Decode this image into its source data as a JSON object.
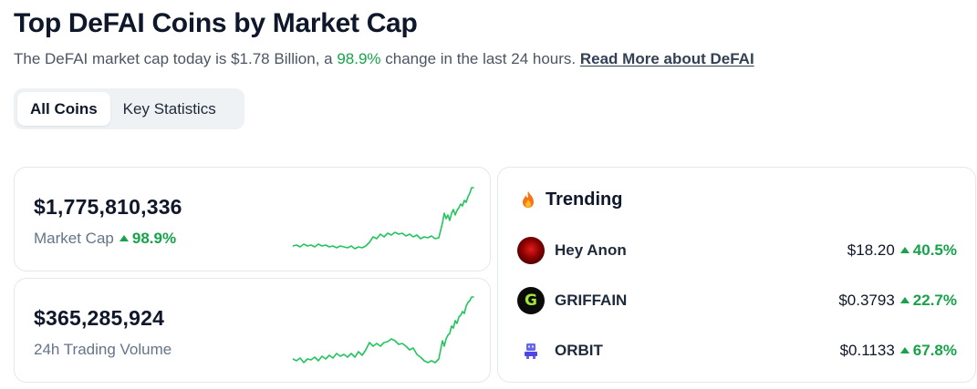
{
  "header": {
    "title": "Top DeFAI Coins by Market Cap",
    "subtitle_prefix": "The DeFAI market cap today is $1.78 Billion, a ",
    "subtitle_pct": "98.9%",
    "subtitle_suffix": " change in the last 24 hours. ",
    "read_more": "Read More about DeFAI"
  },
  "tabs": [
    {
      "label": "All Coins",
      "active": true
    },
    {
      "label": "Key Statistics",
      "active": false
    }
  ],
  "market_cap": {
    "value": "$1,775,810,336",
    "label": "Market Cap",
    "change": "98.9%",
    "change_direction": "up"
  },
  "volume": {
    "value": "$365,285,924",
    "label": "24h Trading Volume"
  },
  "trending": {
    "title": "Trending",
    "icon": "fire-icon",
    "coins": [
      {
        "name": "Hey Anon",
        "price": "$18.20",
        "change": "40.5%",
        "icon": "hey-anon-icon"
      },
      {
        "name": "GRIFFAIN",
        "price": "$0.3793",
        "change": "22.7%",
        "icon": "griffain-icon",
        "icon_letter": "G"
      },
      {
        "name": "ORBIT",
        "price": "$0.1133",
        "change": "67.8%",
        "icon": "orbit-icon"
      }
    ]
  },
  "colors": {
    "positive": "#16a34a",
    "spark_line": "#22c55e",
    "text_primary": "#0f172a",
    "text_muted": "#64748b"
  }
}
